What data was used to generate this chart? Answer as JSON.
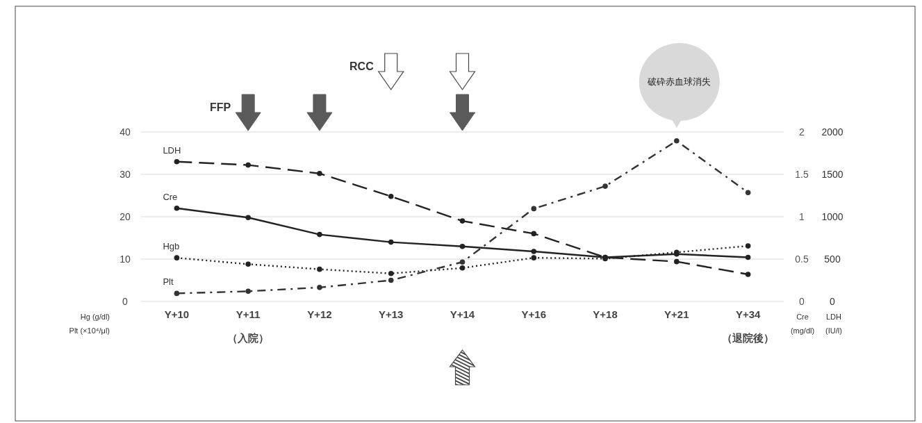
{
  "chart_data": {
    "type": "line",
    "categories": [
      "Y+10",
      "Y+11\n（入院）",
      "Y+12",
      "Y+13",
      "Y+14",
      "Y+16",
      "Y+18",
      "Y+21",
      "Y+34\n（退院後）"
    ],
    "series": [
      {
        "name": "LDH",
        "color": "#222222",
        "axis": "y3",
        "line_style": "dashed",
        "values": [
          1650,
          1610,
          1510,
          1240,
          950,
          800,
          520,
          470,
          320
        ]
      },
      {
        "name": "Cre",
        "color": "#222222",
        "axis": "y2",
        "line_style": "solid",
        "values": [
          1.1,
          0.99,
          0.79,
          0.7,
          0.65,
          0.59,
          0.52,
          0.56,
          0.52
        ]
      },
      {
        "name": "Hgb",
        "color": "#222222",
        "line_style": "dotted",
        "values": [
          10.3,
          8.8,
          7.6,
          6.6,
          7.9,
          10.3,
          10.1,
          11.6,
          13.1
        ]
      },
      {
        "name": "Plt",
        "color": "#333333",
        "line_style": "dashdot",
        "values": [
          1.9,
          2.4,
          3.3,
          5.0,
          9.3,
          21.9,
          27.2,
          37.9,
          25.7
        ]
      }
    ],
    "ylim": [
      0,
      40
    ],
    "yticks": [
      0,
      10,
      20,
      30,
      40
    ],
    "y2lim": [
      0,
      2
    ],
    "y2ticks": [
      0,
      0.5,
      1,
      1.5,
      2
    ],
    "y3lim": [
      0,
      2000
    ],
    "y3ticks": [
      0,
      500,
      1000,
      1500,
      2000
    ],
    "ylabel": "Hg (g/dl)\nPlt (×10⁴/μl)",
    "y2label": "Cre\n(mg/dl)",
    "y3label": "LDH\n(IU/l)",
    "grid": "y",
    "marker": "circle",
    "annotations": [
      "FFP",
      "RCC",
      "破砕赤血球消失"
    ]
  }
}
